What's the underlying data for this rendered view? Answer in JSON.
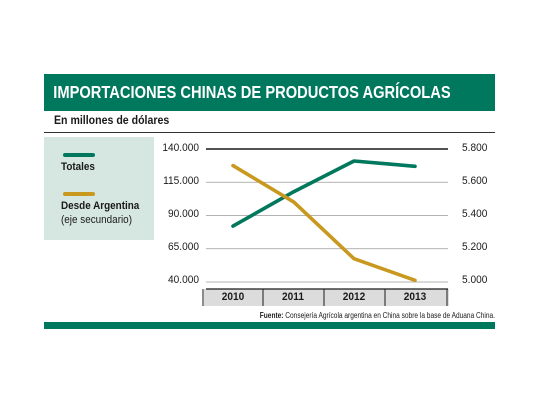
{
  "title": "IMPORTACIONES CHINAS DE PRODUCTOS AGRÍCOLAS",
  "subtitle": "En millones de dólares",
  "source_prefix": "Fuente:",
  "source_text": "Consejería Agrícola argentina en China sobre la base de Aduana China.",
  "colors": {
    "green": "#00785e",
    "gold": "#c9981e",
    "legend_bg": "#d6e6e1"
  },
  "chart_data": {
    "type": "line",
    "categories": [
      "2010",
      "2011",
      "2012",
      "2013"
    ],
    "y_left_ticks": [
      "140.000",
      "115.000",
      "90.000",
      "65.000",
      "40.000"
    ],
    "y_right_ticks": [
      "5.800",
      "5.600",
      "5.400",
      "5.200",
      "5.000"
    ],
    "ylim_left": [
      40000,
      140000
    ],
    "ylim_right": [
      5000,
      5800
    ],
    "series": [
      {
        "name": "Totales",
        "axis": "left",
        "color": "#00785e",
        "values": [
          82000,
          108000,
          131000,
          127000
        ]
      },
      {
        "name": "Desde Argentina",
        "axis": "right",
        "note": "(eje secundario)",
        "color": "#c9981e",
        "values": [
          5700,
          5480,
          5140,
          5010
        ]
      }
    ],
    "legend_placement": "left"
  }
}
